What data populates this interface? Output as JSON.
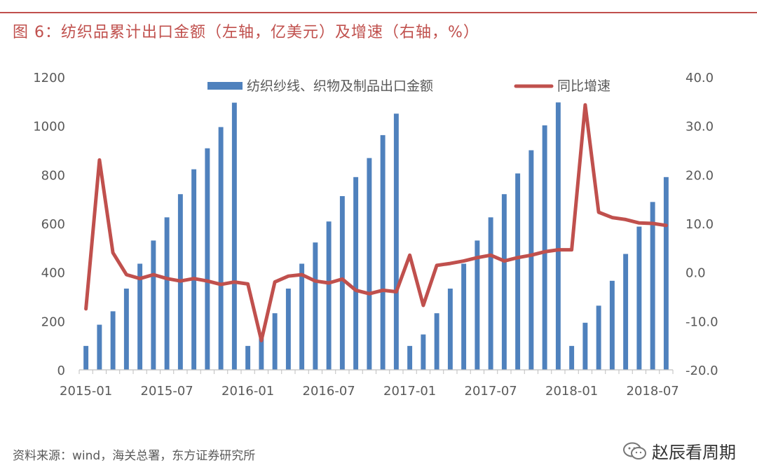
{
  "figure": {
    "title": "图 6：纺织品累计出口金额（左轴，亿美元）及增速（右轴，%）",
    "source": "资料来源：wind，海关总署，东方证券研究所",
    "watermark": "赵辰看周期"
  },
  "colors": {
    "accent": "#c0504d",
    "bar": "#4f81bd",
    "line": "#c0504d",
    "axis_text": "#595959"
  },
  "chart_data": {
    "type": "bar",
    "x_tick_labels": [
      "2015-01",
      "2015-07",
      "2016-01",
      "2016-07",
      "2017-01",
      "2017-07",
      "2018-01",
      "2018-07"
    ],
    "x_tick_index": [
      0,
      6,
      12,
      18,
      24,
      30,
      36,
      42
    ],
    "left_axis": {
      "range": [
        0,
        1200
      ],
      "ticks": [
        "0",
        "200",
        "400",
        "600",
        "800",
        "1000",
        "1200"
      ],
      "tick_values": [
        0,
        200,
        400,
        600,
        800,
        1000,
        1200
      ]
    },
    "right_axis": {
      "range": [
        -20,
        40
      ],
      "ticks": [
        "-20.0",
        "-10.0",
        "0.0",
        "10.0",
        "20.0",
        "30.0",
        "40.0"
      ],
      "tick_values": [
        -20,
        -10,
        0,
        10,
        20,
        30,
        40
      ]
    },
    "legend_position": "top",
    "series": [
      {
        "name": "纺织纱线、织物及制品出口金额",
        "type": "bar",
        "axis": "left",
        "values": [
          98,
          185,
          240,
          333,
          435,
          530,
          625,
          720,
          822,
          908,
          995,
          1095,
          98,
          130,
          232,
          333,
          435,
          522,
          608,
          712,
          790,
          868,
          962,
          1050,
          98,
          145,
          232,
          333,
          435,
          530,
          625,
          720,
          805,
          900,
          1002,
          1096,
          98,
          193,
          263,
          365,
          475,
          587,
          688,
          790
        ]
      },
      {
        "name": "同比增速",
        "type": "line",
        "axis": "right",
        "values": [
          -7.5,
          23.0,
          4.0,
          -0.5,
          -1.3,
          -0.5,
          -1.3,
          -1.8,
          -1.3,
          -1.8,
          -2.5,
          -2.0,
          -2.4,
          -14.0,
          -2.0,
          -0.8,
          -0.5,
          -1.8,
          -2.2,
          -1.4,
          -3.7,
          -4.4,
          -3.7,
          -4.0,
          3.5,
          -6.8,
          1.4,
          1.8,
          2.3,
          3.0,
          3.5,
          2.3,
          3.0,
          3.5,
          4.2,
          4.6,
          4.6,
          34.3,
          12.3,
          11.2,
          10.8,
          10.1,
          10.0,
          9.6
        ]
      }
    ]
  }
}
